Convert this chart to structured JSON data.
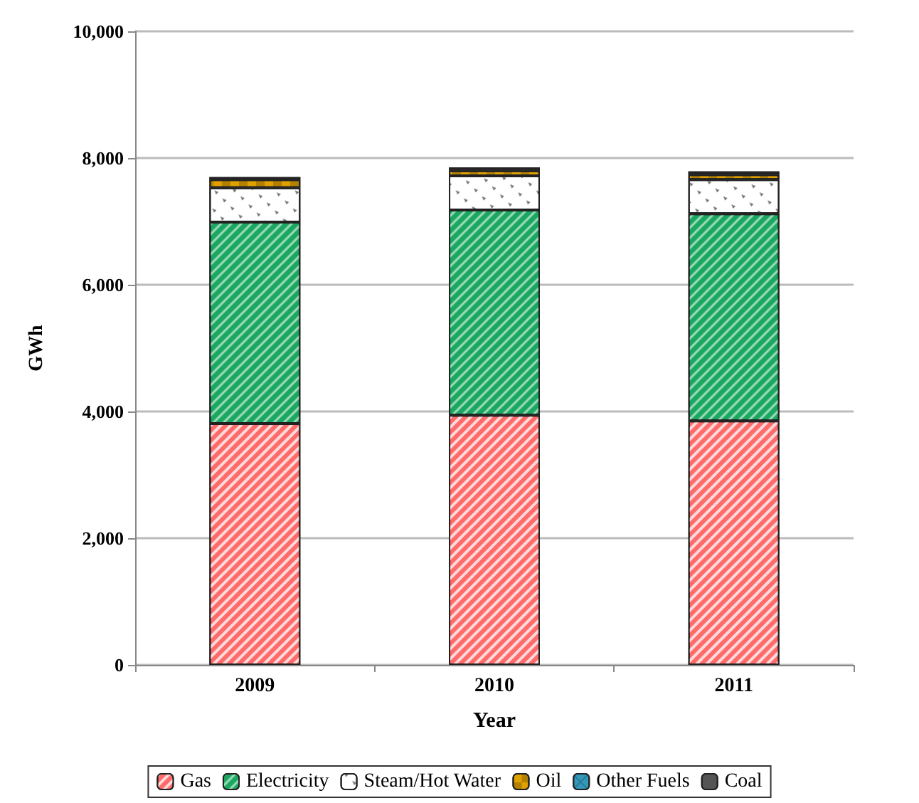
{
  "chart_data": {
    "type": "bar",
    "stacked": true,
    "xlabel": "Year",
    "ylabel": "GWh",
    "categories": [
      "2009",
      "2010",
      "2011"
    ],
    "series": [
      {
        "name": "Gas",
        "color": "#ff6b6b",
        "values": [
          3810,
          3940,
          3850
        ]
      },
      {
        "name": "Electricity",
        "color": "#1aa860",
        "values": [
          3180,
          3240,
          3270
        ]
      },
      {
        "name": "Steam/Hot Water",
        "color": "#ffffff",
        "values": [
          540,
          540,
          540
        ]
      },
      {
        "name": "Oil",
        "color": "#e0a000",
        "values": [
          130,
          80,
          80
        ]
      },
      {
        "name": "Other Fuels",
        "color": "#3399bb",
        "values": [
          0,
          0,
          0
        ]
      },
      {
        "name": "Coal",
        "color": "#555555",
        "values": [
          40,
          50,
          50
        ]
      }
    ],
    "ylim": [
      0,
      10000
    ],
    "yticks": [
      0,
      {
        "value": 2000,
        "label": "2,000"
      },
      {
        "value": 4000,
        "label": "4,000"
      },
      {
        "value": 6000,
        "label": "6,000"
      },
      {
        "value": 8000,
        "label": "8,000"
      },
      {
        "value": 10000,
        "label": "10,000"
      }
    ],
    "grid": "y",
    "legend": "bottom"
  }
}
